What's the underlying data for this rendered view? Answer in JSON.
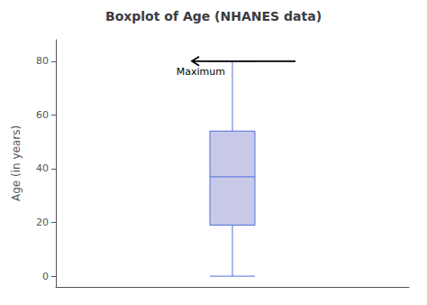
{
  "chart_data": {
    "type": "boxplot",
    "title": "Boxplot of Age (NHANES data)",
    "ylabel": "Age (in years)",
    "values": [
      0,
      19,
      37,
      54,
      80
    ],
    "color": "#c8c8e8",
    "ylim": [
      -4,
      88
    ],
    "yticks": [
      0,
      20,
      40,
      60,
      80
    ],
    "grid": false,
    "tick_labels": "y",
    "annotations": [
      {
        "text": "Maximum",
        "y": 80
      }
    ]
  }
}
